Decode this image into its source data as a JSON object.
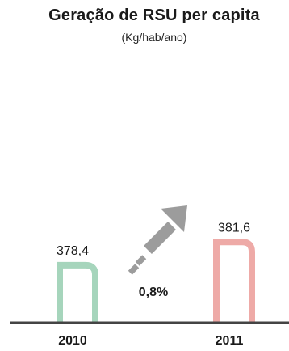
{
  "chart_data": {
    "type": "bar",
    "title": "Geração de RSU per capita",
    "subtitle": "(Kg/hab/ano)",
    "categories": [
      "2010",
      "2011"
    ],
    "values": [
      378.4,
      381.6
    ],
    "value_labels": [
      "378,4",
      "381,6"
    ],
    "bar_colors": [
      "#a6d5bc",
      "#eeaaa7"
    ],
    "annotation": "0,8%",
    "annotation_color": "#9c9c9c",
    "axis_color": "#444444"
  }
}
